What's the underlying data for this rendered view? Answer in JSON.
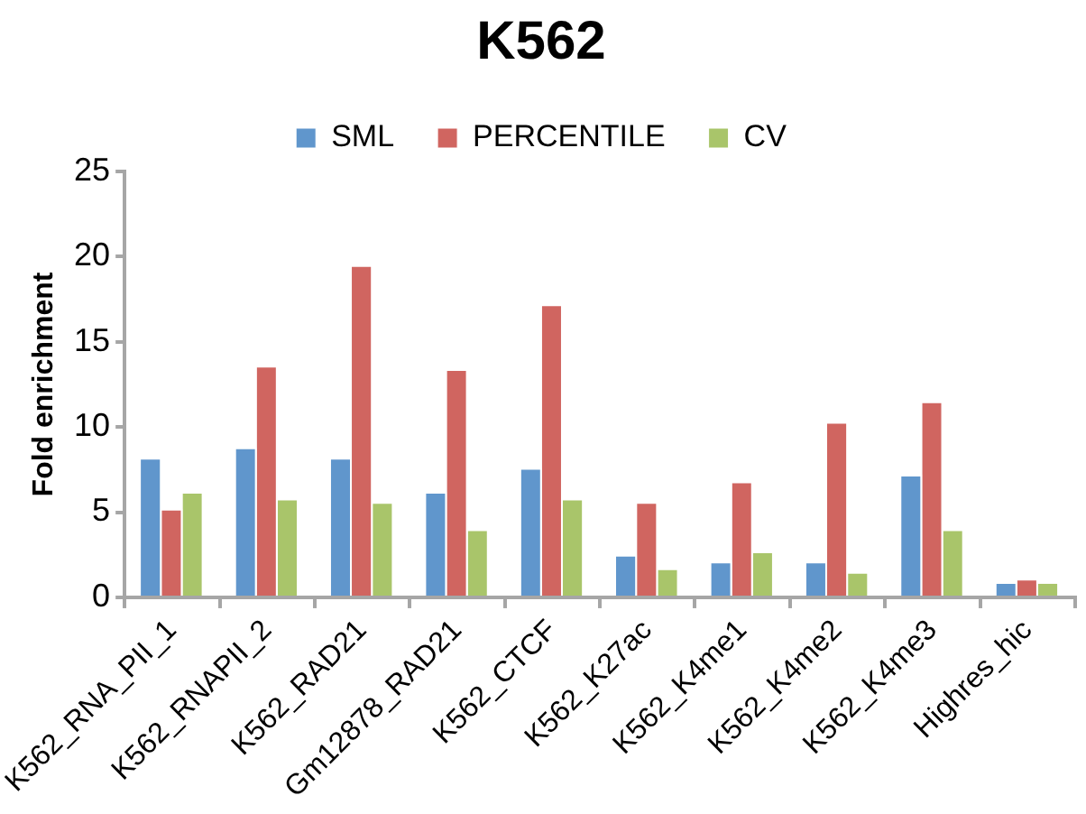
{
  "chart_data": {
    "type": "bar",
    "title": "K562",
    "ylabel": "Fold enrichment",
    "categories": [
      "K562_RNA_PII_1",
      "K562_RNAPII_2",
      "K562_RAD21",
      "Gm12878_RAD21",
      "K562_CTCF",
      "K562_K27ac",
      "K562_K4me1",
      "K562_K4me2",
      "K562_K4me3",
      "Highres_hic"
    ],
    "series": [
      {
        "name": "SML",
        "color": "#6096cc",
        "values": [
          8.2,
          8.8,
          8.2,
          6.2,
          7.6,
          2.5,
          2.1,
          2.1,
          7.2,
          0.9
        ]
      },
      {
        "name": "PERCENTILE",
        "color": "#d06560",
        "values": [
          5.2,
          13.6,
          19.5,
          13.4,
          17.2,
          5.6,
          6.8,
          10.3,
          11.5,
          1.1
        ]
      },
      {
        "name": "CV",
        "color": "#a9c56a",
        "values": [
          6.2,
          5.8,
          5.6,
          4.0,
          5.8,
          1.7,
          2.7,
          1.5,
          4.0,
          0.9
        ]
      }
    ],
    "ylim": [
      0,
      25
    ],
    "yticks": [
      0,
      5,
      10,
      15,
      20,
      25
    ],
    "grid": false,
    "legend": "top"
  }
}
